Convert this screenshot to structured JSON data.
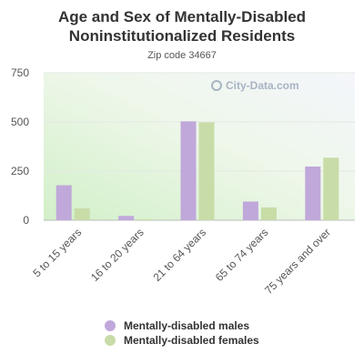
{
  "chart_data": {
    "type": "bar",
    "title": "Age and Sex of Mentally-Disabled Noninstitutionalized Residents",
    "subtitle": "Zip code 34667",
    "categories": [
      "5 to 15 years",
      "16 to 20 years",
      "21 to 64 years",
      "65 to 74 years",
      "75 years and over"
    ],
    "series": [
      {
        "name": "Mentally-disabled males",
        "color": "#c0a8da",
        "values": [
          178,
          22,
          503,
          95,
          273
        ]
      },
      {
        "name": "Mentally-disabled females",
        "color": "#c8dca8",
        "values": [
          60,
          5,
          498,
          65,
          318
        ]
      }
    ],
    "yticks": [
      "0",
      "250",
      "500",
      "750"
    ],
    "ylim": [
      0,
      750
    ],
    "grid": true,
    "legend_position": "bottom"
  },
  "watermark": {
    "text": "City-Data.com"
  }
}
